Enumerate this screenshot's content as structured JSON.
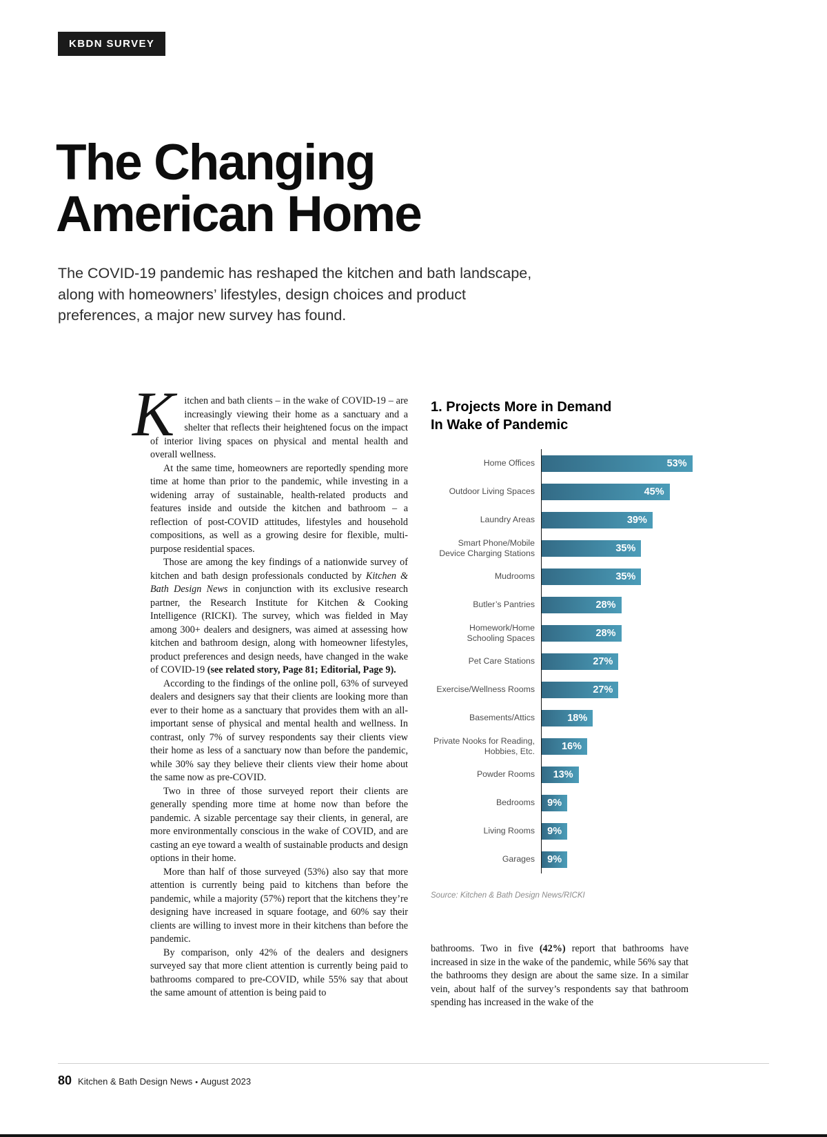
{
  "masthead": {
    "tag": "KBDN SURVEY"
  },
  "header": {
    "title_line1": "The Changing",
    "title_line2": "American Home",
    "deck": "The COVID-19 pandemic has reshaped the kitchen and bath landscape, along with homeowners’ lifestyles, design choices and product preferences, a major new survey has found."
  },
  "article": {
    "drop_cap": "K",
    "left_column_paragraphs": [
      [
        {
          "t": "itchen and bath clients – in the wake of COVID-19 – are increasingly viewing their home as a sanctuary and a shelter that reflects their heightened focus on the impact of interior living spaces on physical and mental health and overall wellness."
        }
      ],
      [
        {
          "t": "At the same time, homeowners are reportedly spending more time at home than prior to the pandemic, while investing in a widening array of sustainable, health-related products and features inside and outside the kitchen and bathroom – a reflection of post-COVID attitudes, lifestyles and household compositions, as well as a growing desire for flexible, multi-purpose residential spaces."
        }
      ],
      [
        {
          "t": "Those are among the key findings of a nationwide survey of kitchen and bath design professionals conducted by "
        },
        {
          "t": "Kitchen & Bath Design News",
          "s": "i"
        },
        {
          "t": " in conjunction with its exclusive research partner, the Research Institute for Kitchen & Cooking Intelligence (RICKI). The survey, which was fielded in May among 300+ dealers and designers, was aimed at assessing how kitchen and bathroom design, along with homeowner lifestyles, product preferences and design needs, have changed in the wake of COVID-19 "
        },
        {
          "t": "(see related story, Page 81; Editorial, Page 9).",
          "s": "b"
        }
      ],
      [
        {
          "t": "According to the findings of the online poll, 63% of surveyed dealers and designers say that their clients are looking more than ever to their home as a sanctuary that provides them with an all-important sense of physical and mental health and wellness. In contrast, only 7% of survey respondents say their clients view their home as less of a sanctuary now than before the pandemic, while 30% say they believe their clients view their home about the same now as pre-COVID."
        }
      ],
      [
        {
          "t": "Two in three of those surveyed report their clients are generally spending more time at home now than before the pandemic. A sizable percentage say their clients, in general, are more environmentally conscious in the wake of COVID, and are casting an eye toward a wealth of sustainable products and design options in their home."
        }
      ],
      [
        {
          "t": "More than half of those surveyed (53%) also say that more attention is currently being paid to kitchens than before the pandemic, while a majority (57%) report that the kitchens they’re designing have increased in square footage, and 60% say their clients are willing to invest more in their kitchens than before the pandemic."
        }
      ],
      [
        {
          "t": "By comparison, only 42% of the dealers and designers surveyed say that more client attention is currently being paid to bathrooms compared to pre-COVID, while 55% say that about the same amount of attention is being paid to"
        }
      ]
    ],
    "right_column_paragraphs": [
      [
        {
          "t": "bathrooms. Two in five "
        },
        {
          "t": "(42%)",
          "s": "b"
        },
        {
          "t": " report that bathrooms have increased in size in the wake of the pandemic, while 56% say that the bathrooms they design are about the same size. In a similar vein, about half of the survey’s respondents say that bathroom spending has increased in the wake of the"
        }
      ]
    ]
  },
  "chart": {
    "title_line1": "1. Projects More in Demand",
    "title_line2": "In Wake of Pandemic",
    "source": "Source: Kitchen & Bath Design News/RICKI"
  },
  "chart_data": {
    "type": "bar",
    "orientation": "horizontal",
    "title": "1. Projects More in Demand In Wake of Pandemic",
    "categories": [
      "Home Offices",
      "Outdoor Living Spaces",
      "Laundry Areas",
      "Smart Phone/Mobile Device Charging Stations",
      "Mudrooms",
      "Butler’s Pantries",
      "Homework/Home Schooling Spaces",
      "Pet Care Stations",
      "Exercise/Wellness Rooms",
      "Basements/Attics",
      "Private Nooks for Reading, Hobbies, Etc.",
      "Powder Rooms",
      "Bedrooms",
      "Living Rooms",
      "Garages"
    ],
    "values": [
      53,
      45,
      39,
      35,
      35,
      28,
      28,
      27,
      27,
      18,
      16,
      13,
      9,
      9,
      9
    ],
    "value_suffix": "%",
    "xlim": [
      0,
      80
    ],
    "grid": false,
    "legend": false,
    "bar_color_start": "#336b86",
    "bar_color_end": "#4b9cb8",
    "value_label_color": "#ffffff",
    "source": "Source: Kitchen & Bath Design News/RICKI"
  },
  "footer": {
    "page_number": "80",
    "publication": "Kitchen & Bath Design News",
    "separator": "•",
    "issue": "August 2023"
  },
  "colors": {
    "tag_background": "#1b1b1b",
    "tag_text": "#ffffff",
    "headline_text": "#0d0d0d"
  }
}
